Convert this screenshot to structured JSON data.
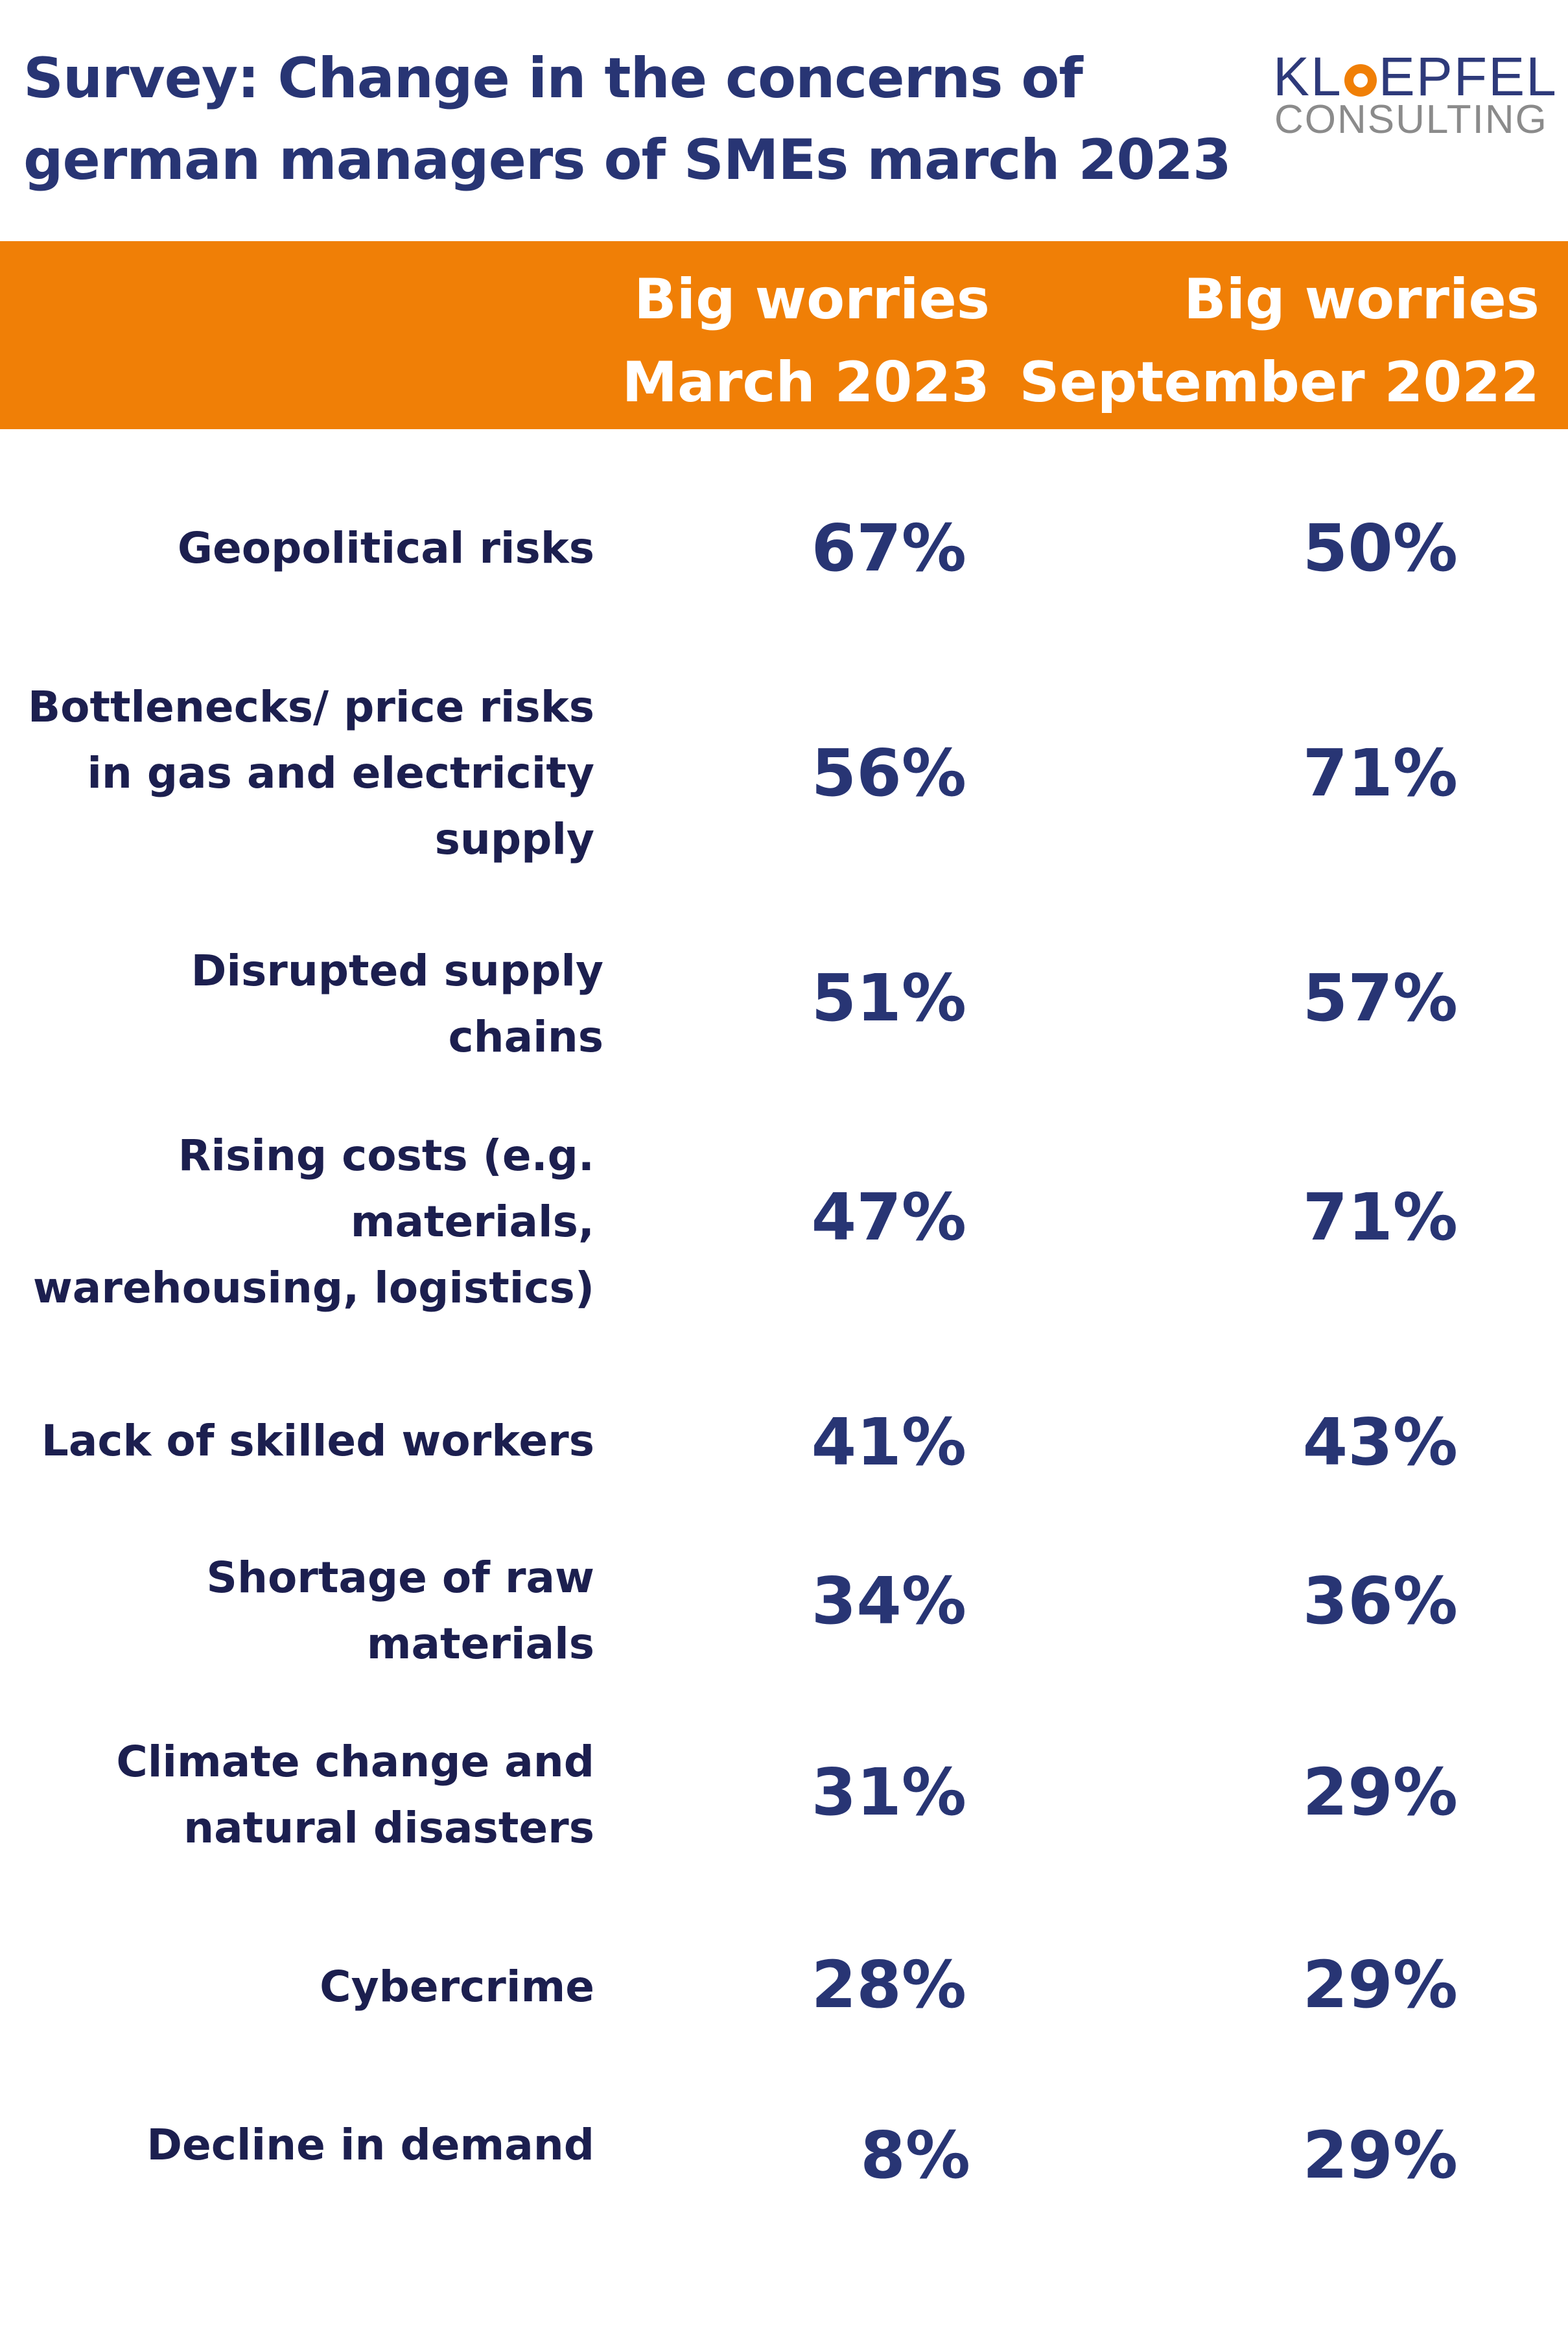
{
  "title_lines": [
    "Survey: Change in the concerns of",
    "german managers of SMEs march 2023"
  ],
  "logo": {
    "top": "KLOEPFEL",
    "bottom": "CONSULTING",
    "colors": {
      "dark": "#2e3a7a",
      "accent": "#f07f06",
      "grey": "#8b8b8b"
    }
  },
  "colors": {
    "header_band": "#f07f06",
    "title": "#283574",
    "label": "#1c1f4f",
    "value": "#283574"
  },
  "chart_data": {
    "type": "table",
    "columns": [
      {
        "lines": [
          "Big worries",
          "March 2023"
        ]
      },
      {
        "lines": [
          "Big worries",
          "September 2022"
        ]
      }
    ],
    "rows": [
      {
        "label_lines": [
          "Geopolitical risks"
        ],
        "march_2023": "67%",
        "september_2022": "50%"
      },
      {
        "label_lines": [
          "Bottlenecks/ price risks",
          "in gas and electricity",
          "supply"
        ],
        "march_2023": "56%",
        "september_2022": "71%"
      },
      {
        "label_lines": [
          "Disrupted supply",
          "chains"
        ],
        "march_2023": "51%",
        "september_2022": "57%"
      },
      {
        "label_lines": [
          "Rising costs (e.g.",
          "materials,",
          "warehousing, logistics)"
        ],
        "march_2023": "47%",
        "september_2022": "71%"
      },
      {
        "label_lines": [
          "Lack of skilled workers"
        ],
        "march_2023": "41%",
        "september_2022": "43%"
      },
      {
        "label_lines": [
          "Shortage of raw",
          "materials"
        ],
        "march_2023": "34%",
        "september_2022": "36%"
      },
      {
        "label_lines": [
          "Climate change and",
          "natural disasters"
        ],
        "march_2023": "31%",
        "september_2022": "29%"
      },
      {
        "label_lines": [
          "Cybercrime"
        ],
        "march_2023": "28%",
        "september_2022": "29%"
      },
      {
        "label_lines": [
          "Decline in demand"
        ],
        "march_2023": "8%",
        "september_2022": "29%"
      }
    ]
  }
}
